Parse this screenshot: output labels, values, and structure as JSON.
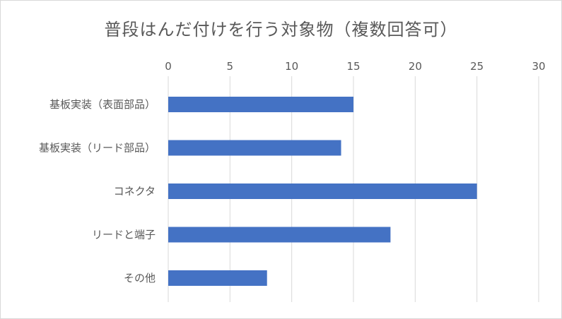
{
  "chart_data": {
    "type": "bar",
    "orientation": "horizontal",
    "title": "普段はんだ付けを行う対象物（複数回答可）",
    "categories": [
      "基板実装（表面部品）",
      "基板実装（リード部品）",
      "コネクタ",
      "リードと端子",
      "その他"
    ],
    "values": [
      15,
      14,
      25,
      18,
      8
    ],
    "xlim": [
      0,
      30
    ],
    "x_ticks": [
      0,
      5,
      10,
      15,
      20,
      25,
      30
    ],
    "x_axis_position": "top",
    "grid": true,
    "legend": "none",
    "colors": {
      "bar": "#4472c4",
      "grid": "#d9d9d9",
      "text": "#595959"
    }
  }
}
